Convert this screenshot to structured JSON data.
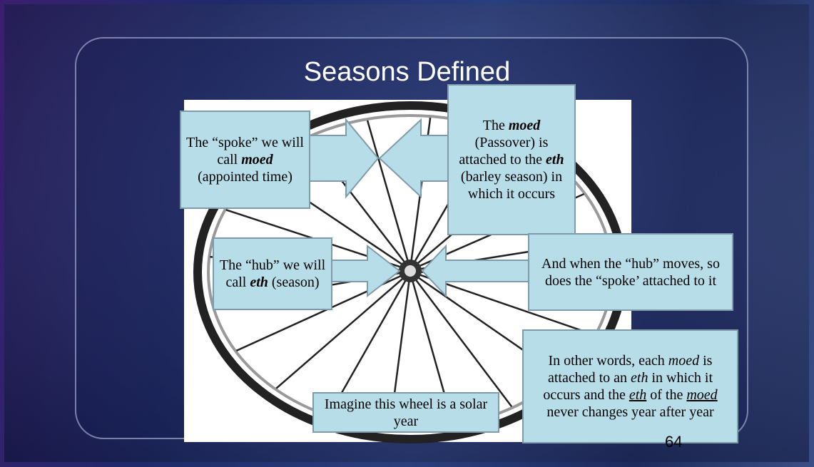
{
  "title": "Seasons Defined",
  "callouts": {
    "spoke": [
      "The “spoke” we will call ",
      "moed",
      " (appointed time)"
    ],
    "passover": [
      "The ",
      "moed",
      " (Passover) is attached to the ",
      "eth",
      " (barley season) in which it occurs"
    ],
    "hub": [
      "The “hub” we will call ",
      "eth",
      " (season)"
    ],
    "moves": [
      "And when the “hub” moves, so does the “spoke’ attached to it"
    ],
    "other_words": [
      "In other words, each ",
      "moed",
      " is attached to an ",
      "eth",
      " in which it occurs and the ",
      "eth",
      " of the ",
      "moed",
      " never changes year after year"
    ],
    "wheel": [
      "Imagine this wheel is a solar year"
    ]
  },
  "page_number": "64"
}
